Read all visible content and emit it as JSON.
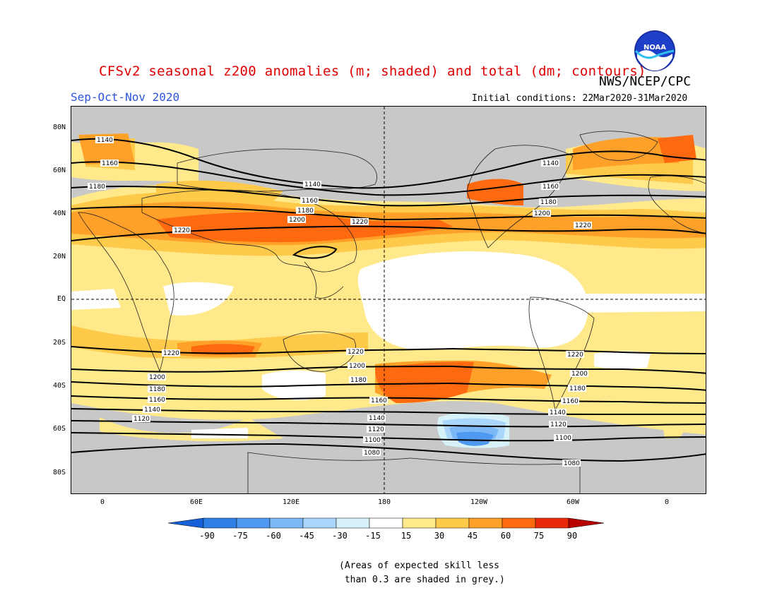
{
  "header": {
    "title": "CFSv2 seasonal z200 anomalies (m; shaded) and total (dm; contours)",
    "agency": "NWS/NCEP/CPC",
    "season": "Sep-Oct-Nov 2020",
    "initial_conditions": "Initial conditions: 22Mar2020-31Mar2020",
    "logo_text": "NOAA"
  },
  "axes": {
    "lat_labels": [
      "80N",
      "60N",
      "40N",
      "20N",
      "EQ",
      "20S",
      "40S",
      "60S",
      "80S"
    ],
    "lon_labels": [
      "0",
      "60E",
      "120E",
      "180",
      "120W",
      "60W",
      "0"
    ]
  },
  "contour_labels": [
    "1140",
    "1160",
    "1180",
    "1200",
    "1220",
    "1100",
    "1120",
    "1080"
  ],
  "colorbar": {
    "labels": [
      "-90",
      "-75",
      "-60",
      "-45",
      "-30",
      "-15",
      "15",
      "30",
      "45",
      "60",
      "75",
      "90"
    ],
    "colors": [
      "#1560d6",
      "#2f7fe6",
      "#4f9af0",
      "#7cb8f6",
      "#a9d6fa",
      "#d6f2f8",
      "#ffffff",
      "#ffe98a",
      "#ffc94a",
      "#ffa028",
      "#ff6a10",
      "#e82a0a",
      "#b80000"
    ]
  },
  "note": "(Areas of expected skill less\n than 0.3 are shaded in grey.)"
}
